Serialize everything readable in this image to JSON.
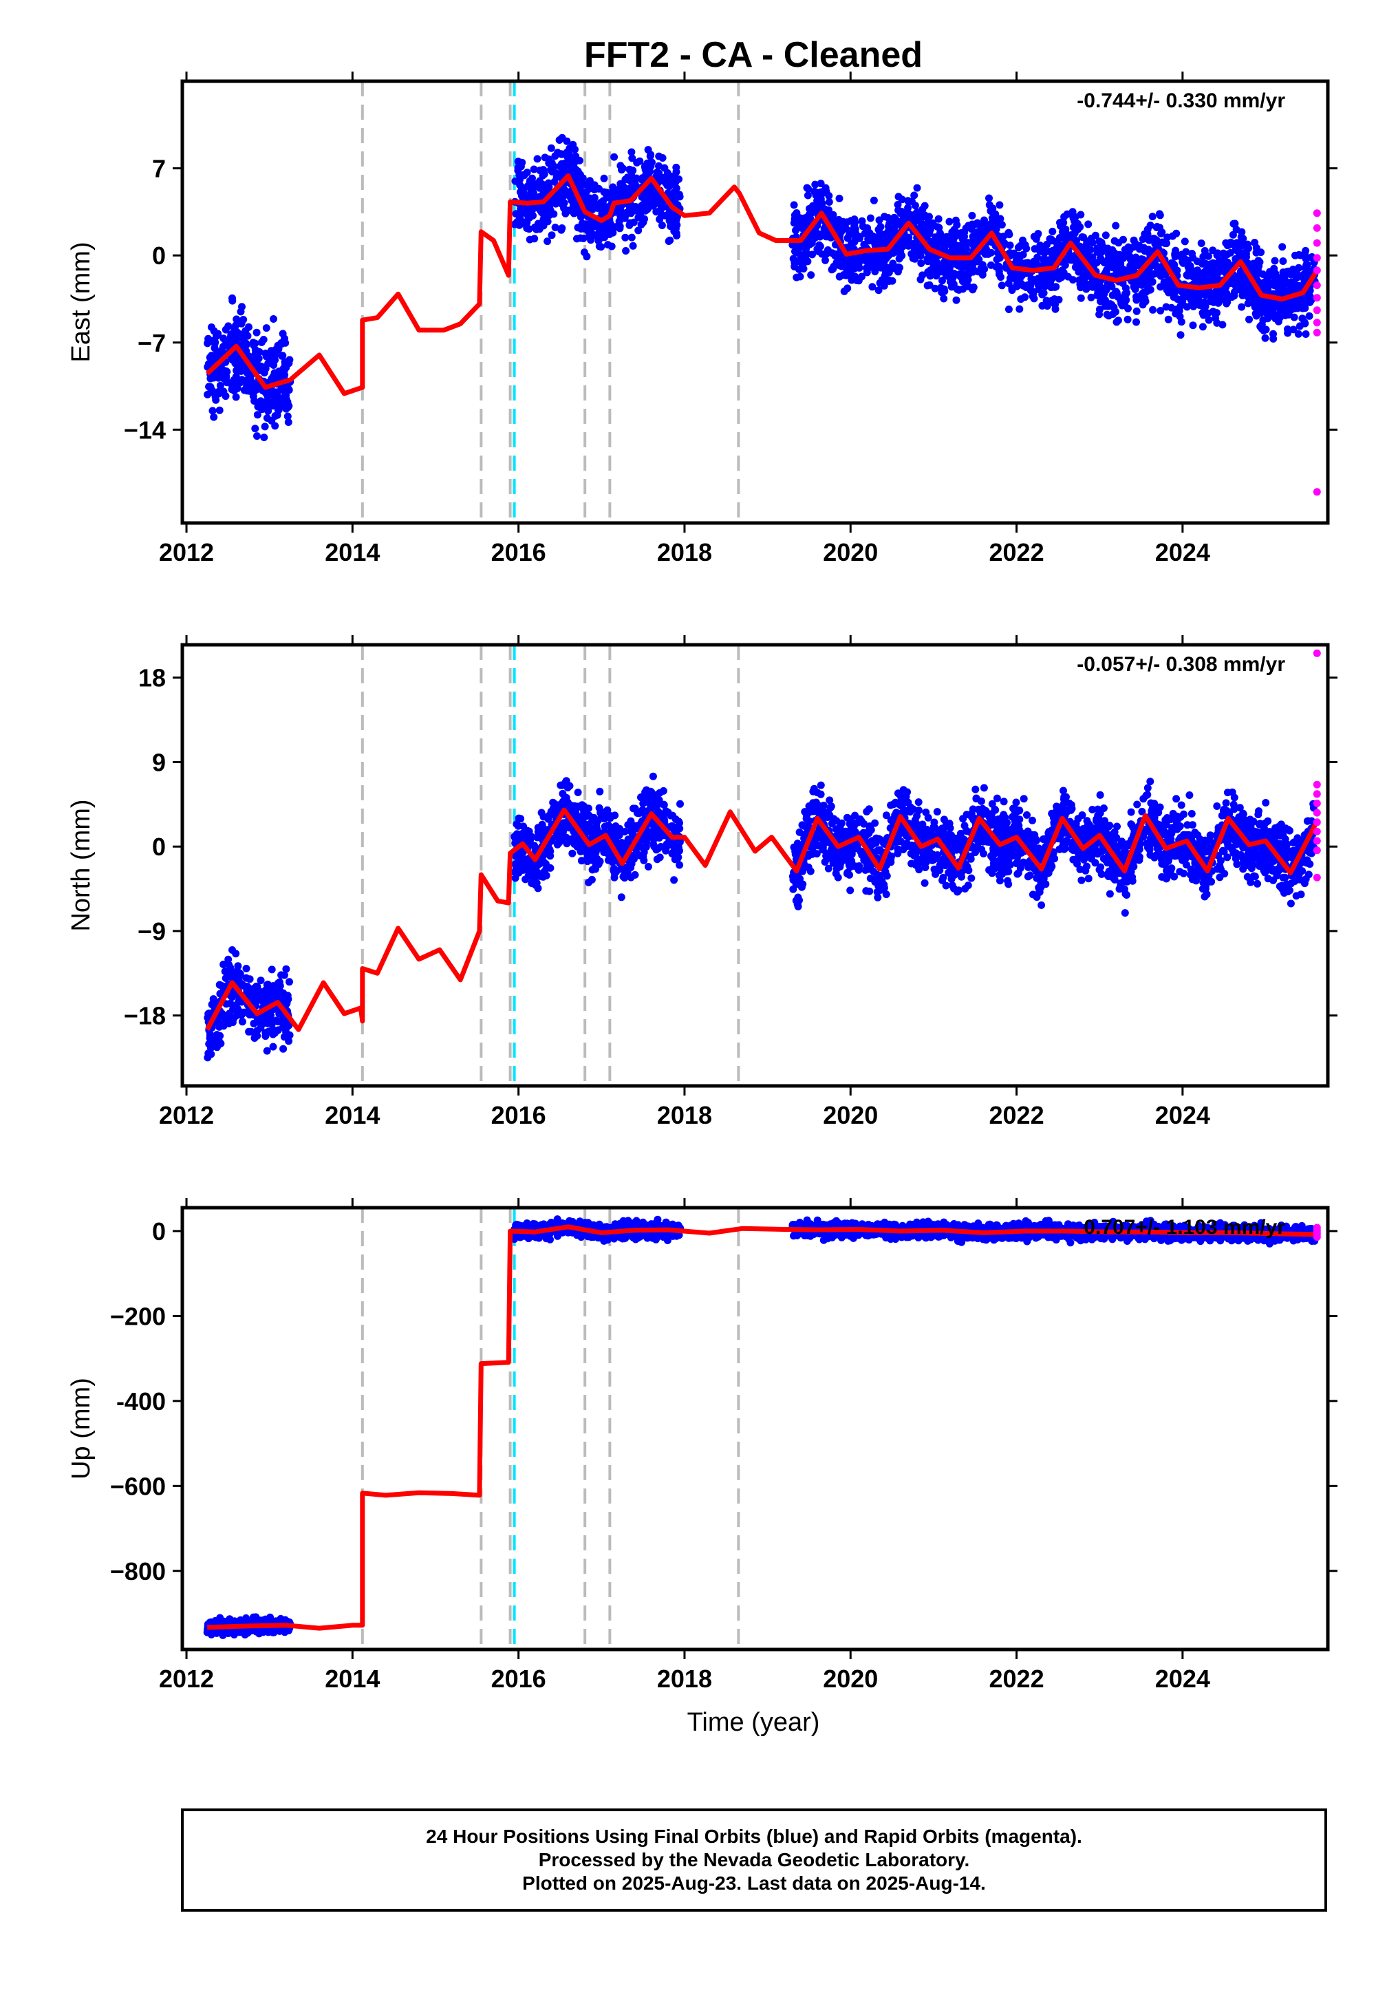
{
  "title": "FFT2  - CA - Cleaned",
  "x_axis_label": "Time (year)",
  "caption": [
    "24 Hour Positions Using Final Orbits (blue) and Rapid Orbits (magenta).",
    "Processed by the Nevada Geodetic Laboratory.",
    "Plotted on 2025-Aug-23. Last data on 2025-Aug-14."
  ],
  "colors": {
    "final_orbits": "#0000ff",
    "rapid_orbits": "#ff00ff",
    "model": "#ff0000",
    "equipment_change": "#bbbbbb",
    "earthquake": "#00e5ff"
  },
  "events": {
    "gray_dashed": [
      2014.12,
      2015.55,
      2015.9,
      2016.8,
      2017.1,
      2018.65
    ],
    "cyan_dashed": [
      2015.95
    ]
  },
  "chart_data": [
    {
      "type": "scatter",
      "name": "east",
      "ylabel": "East (mm)",
      "rate_label": "-0.744+/- 0.330 mm/yr",
      "xlim": [
        2011.95,
        2025.75
      ],
      "ylim": [
        -21.5,
        14
      ],
      "xticks": [
        2012,
        2014,
        2016,
        2018,
        2020,
        2022,
        2024
      ],
      "yticks": [
        7,
        0,
        -7,
        -14
      ],
      "ytick_labels": [
        "7",
        "0",
        "−7",
        "−14"
      ],
      "grid": false,
      "series": [
        {
          "name": "",
          "type": "scatter",
          "segments": [
            {
              "start": 2012.25,
              "end": 2013.25,
              "center": -9.0,
              "spread": 6.5
            },
            {
              "start": 2015.95,
              "end": 2017.95,
              "center": 4.0,
              "spread": 5.0
            },
            {
              "start": 2019.3,
              "end": 2025.6,
              "center": -0.5,
              "spread": 5.0
            }
          ]
        },
        {
          "name": "",
          "type": "scatter",
          "points": [
            [
              2025.62,
              3.4
            ],
            [
              2025.62,
              2.2
            ],
            [
              2025.62,
              1.0
            ],
            [
              2025.62,
              -0.2
            ],
            [
              2025.62,
              -1.2
            ],
            [
              2025.62,
              -2.4
            ],
            [
              2025.62,
              -3.4
            ],
            [
              2025.62,
              -4.4
            ],
            [
              2025.62,
              -5.4
            ],
            [
              2025.62,
              -6.2
            ],
            [
              2025.62,
              -19.0
            ]
          ]
        },
        {
          "name": "",
          "type": "line",
          "points": [
            [
              2012.25,
              -9.5
            ],
            [
              2012.6,
              -7.3
            ],
            [
              2012.95,
              -10.6
            ],
            [
              2013.25,
              -10.0
            ],
            [
              2013.6,
              -8.0
            ],
            [
              2013.9,
              -11.1
            ],
            [
              2014.12,
              -10.6
            ],
            [
              2014.12,
              -5.2
            ],
            [
              2014.3,
              -5.0
            ],
            [
              2014.55,
              -3.1
            ],
            [
              2014.8,
              -6.0
            ],
            [
              2015.1,
              -6.0
            ],
            [
              2015.3,
              -5.5
            ],
            [
              2015.53,
              -3.9
            ],
            [
              2015.55,
              1.9
            ],
            [
              2015.7,
              1.2
            ],
            [
              2015.88,
              -1.6
            ],
            [
              2015.9,
              4.3
            ],
            [
              2016.1,
              4.2
            ],
            [
              2016.3,
              4.3
            ],
            [
              2016.6,
              6.4
            ],
            [
              2016.8,
              3.5
            ],
            [
              2017.0,
              2.8
            ],
            [
              2017.1,
              3.2
            ],
            [
              2017.15,
              4.2
            ],
            [
              2017.35,
              4.4
            ],
            [
              2017.6,
              6.2
            ],
            [
              2017.85,
              3.9
            ],
            [
              2018.0,
              3.2
            ],
            [
              2018.3,
              3.4
            ],
            [
              2018.6,
              5.5
            ],
            [
              2018.66,
              5.0
            ],
            [
              2018.9,
              1.8
            ],
            [
              2019.1,
              1.2
            ],
            [
              2019.4,
              1.2
            ],
            [
              2019.65,
              3.4
            ],
            [
              2019.95,
              0.1
            ],
            [
              2020.2,
              0.4
            ],
            [
              2020.45,
              0.5
            ],
            [
              2020.7,
              2.6
            ],
            [
              2020.95,
              0.5
            ],
            [
              2021.2,
              -0.2
            ],
            [
              2021.45,
              -0.2
            ],
            [
              2021.7,
              1.8
            ],
            [
              2021.95,
              -1.0
            ],
            [
              2022.2,
              -1.2
            ],
            [
              2022.45,
              -1.0
            ],
            [
              2022.65,
              1.0
            ],
            [
              2022.95,
              -1.6
            ],
            [
              2023.2,
              -2.0
            ],
            [
              2023.45,
              -1.6
            ],
            [
              2023.7,
              0.3
            ],
            [
              2023.95,
              -2.4
            ],
            [
              2024.2,
              -2.6
            ],
            [
              2024.45,
              -2.4
            ],
            [
              2024.7,
              -0.5
            ],
            [
              2024.95,
              -3.2
            ],
            [
              2025.2,
              -3.5
            ],
            [
              2025.45,
              -3.0
            ],
            [
              2025.62,
              -1.2
            ]
          ]
        }
      ]
    },
    {
      "type": "scatter",
      "name": "north",
      "ylabel": "North (mm)",
      "rate_label": "-0.057+/- 0.308 mm/yr",
      "xlim": [
        2011.95,
        2025.75
      ],
      "ylim": [
        -25.5,
        21.5
      ],
      "xticks": [
        2012,
        2014,
        2016,
        2018,
        2020,
        2022,
        2024
      ],
      "yticks": [
        18,
        9,
        0,
        -9,
        -18
      ],
      "ytick_labels": [
        "18",
        "9",
        "0",
        "−9",
        "−18"
      ],
      "grid": false,
      "series": [
        {
          "name": "",
          "type": "scatter",
          "segments": [
            {
              "start": 2012.25,
              "end": 2013.25,
              "center": -17.0,
              "spread": 6.0
            },
            {
              "start": 2015.95,
              "end": 2017.95,
              "center": 0.8,
              "spread": 6.0
            },
            {
              "start": 2019.3,
              "end": 2025.6,
              "center": 0.3,
              "spread": 6.0
            }
          ]
        },
        {
          "name": "",
          "type": "scatter",
          "points": [
            [
              2025.62,
              20.6
            ],
            [
              2025.62,
              6.6
            ],
            [
              2025.62,
              5.6
            ],
            [
              2025.62,
              4.6
            ],
            [
              2025.62,
              3.6
            ],
            [
              2025.62,
              2.6
            ],
            [
              2025.62,
              1.6
            ],
            [
              2025.62,
              0.6
            ],
            [
              2025.62,
              -0.4
            ],
            [
              2025.62,
              -3.3
            ]
          ]
        },
        {
          "name": "",
          "type": "line",
          "points": [
            [
              2012.25,
              -19.5
            ],
            [
              2012.55,
              -14.5
            ],
            [
              2012.85,
              -17.8
            ],
            [
              2013.1,
              -16.6
            ],
            [
              2013.35,
              -19.5
            ],
            [
              2013.65,
              -14.5
            ],
            [
              2013.9,
              -17.8
            ],
            [
              2014.1,
              -17.2
            ],
            [
              2014.12,
              -18.6
            ],
            [
              2014.12,
              -13.0
            ],
            [
              2014.3,
              -13.5
            ],
            [
              2014.55,
              -8.7
            ],
            [
              2014.8,
              -12.0
            ],
            [
              2015.05,
              -11.0
            ],
            [
              2015.3,
              -14.2
            ],
            [
              2015.53,
              -9.0
            ],
            [
              2015.55,
              -3.0
            ],
            [
              2015.75,
              -5.8
            ],
            [
              2015.88,
              -6.0
            ],
            [
              2015.9,
              -0.7
            ],
            [
              2016.05,
              0.3
            ],
            [
              2016.2,
              -1.4
            ],
            [
              2016.55,
              3.9
            ],
            [
              2016.85,
              0.2
            ],
            [
              2017.05,
              1.2
            ],
            [
              2017.25,
              -1.8
            ],
            [
              2017.6,
              3.5
            ],
            [
              2017.85,
              1.0
            ],
            [
              2018.0,
              1.0
            ],
            [
              2018.25,
              -2.0
            ],
            [
              2018.55,
              3.7
            ],
            [
              2018.85,
              -0.5
            ],
            [
              2019.05,
              1.0
            ],
            [
              2019.35,
              -2.6
            ],
            [
              2019.6,
              3.0
            ],
            [
              2019.85,
              0.0
            ],
            [
              2020.1,
              1.0
            ],
            [
              2020.35,
              -2.4
            ],
            [
              2020.6,
              3.2
            ],
            [
              2020.85,
              0.0
            ],
            [
              2021.05,
              0.8
            ],
            [
              2021.3,
              -2.3
            ],
            [
              2021.55,
              3.0
            ],
            [
              2021.8,
              0.2
            ],
            [
              2022.0,
              1.0
            ],
            [
              2022.3,
              -2.4
            ],
            [
              2022.55,
              3.0
            ],
            [
              2022.8,
              -0.2
            ],
            [
              2023.0,
              1.2
            ],
            [
              2023.3,
              -2.6
            ],
            [
              2023.55,
              3.3
            ],
            [
              2023.8,
              -0.2
            ],
            [
              2024.05,
              0.6
            ],
            [
              2024.3,
              -2.6
            ],
            [
              2024.55,
              3.0
            ],
            [
              2024.8,
              0.2
            ],
            [
              2025.0,
              0.6
            ],
            [
              2025.3,
              -2.8
            ],
            [
              2025.62,
              2.7
            ]
          ]
        }
      ]
    },
    {
      "type": "scatter",
      "name": "up",
      "ylabel": "Up (mm)",
      "rate_label": "0.707+/- 1.103 mm/yr",
      "xlim": [
        2011.95,
        2025.75
      ],
      "ylim": [
        -985,
        55
      ],
      "xticks": [
        2012,
        2014,
        2016,
        2018,
        2020,
        2022,
        2024
      ],
      "yticks": [
        0,
        -200,
        -400,
        -600,
        -800
      ],
      "ytick_labels": [
        "0",
        "−200",
        "-400",
        "−600",
        "−800"
      ],
      "grid": false,
      "series": [
        {
          "name": "",
          "type": "scatter",
          "segments": [
            {
              "start": 2012.25,
              "end": 2013.25,
              "center": -933,
              "spread": 30
            },
            {
              "start": 2015.95,
              "end": 2017.95,
              "center": 2,
              "spread": 30
            },
            {
              "start": 2019.3,
              "end": 2025.6,
              "center": 0,
              "spread": 30
            }
          ]
        },
        {
          "name": "",
          "type": "scatter",
          "points": [
            [
              2025.62,
              8
            ],
            [
              2025.62,
              2
            ],
            [
              2025.62,
              -3
            ],
            [
              2025.62,
              -8
            ],
            [
              2025.62,
              -14
            ]
          ]
        },
        {
          "name": "",
          "type": "line",
          "points": [
            [
              2012.25,
              -933
            ],
            [
              2012.7,
              -930
            ],
            [
              2013.2,
              -928
            ],
            [
              2013.6,
              -935
            ],
            [
              2014.0,
              -928
            ],
            [
              2014.12,
              -928
            ],
            [
              2014.12,
              -617
            ],
            [
              2014.4,
              -622
            ],
            [
              2014.8,
              -616
            ],
            [
              2015.2,
              -618
            ],
            [
              2015.53,
              -622
            ],
            [
              2015.55,
              -312
            ],
            [
              2015.88,
              -309
            ],
            [
              2015.9,
              0
            ],
            [
              2016.2,
              -2
            ],
            [
              2016.6,
              10
            ],
            [
              2017.0,
              -4
            ],
            [
              2017.4,
              2
            ],
            [
              2017.8,
              3
            ],
            [
              2018.3,
              -5
            ],
            [
              2018.7,
              6
            ],
            [
              2019.2,
              4
            ],
            [
              2019.6,
              3
            ],
            [
              2020.1,
              4
            ],
            [
              2020.6,
              0
            ],
            [
              2021.1,
              2
            ],
            [
              2021.6,
              -4
            ],
            [
              2022.1,
              0
            ],
            [
              2022.6,
              0
            ],
            [
              2023.1,
              -2
            ],
            [
              2023.6,
              -2
            ],
            [
              2024.1,
              -4
            ],
            [
              2024.6,
              -4
            ],
            [
              2025.1,
              -6
            ],
            [
              2025.62,
              -8
            ]
          ]
        }
      ]
    }
  ]
}
